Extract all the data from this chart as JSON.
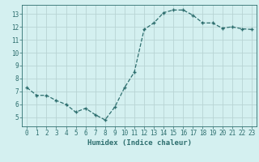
{
  "x": [
    0,
    1,
    2,
    3,
    4,
    5,
    6,
    7,
    8,
    9,
    10,
    11,
    12,
    13,
    14,
    15,
    16,
    17,
    18,
    19,
    20,
    21,
    22,
    23
  ],
  "y": [
    7.3,
    6.7,
    6.7,
    6.3,
    6.0,
    5.4,
    5.7,
    5.2,
    4.8,
    5.8,
    7.3,
    8.5,
    11.8,
    12.3,
    13.1,
    13.3,
    13.3,
    12.9,
    12.3,
    12.3,
    11.9,
    12.0,
    11.85,
    11.8
  ],
  "line_color": "#2d6e6e",
  "marker": "+",
  "marker_size": 3.5,
  "marker_linewidth": 1.0,
  "line_width": 0.9,
  "bg_color": "#d4f0f0",
  "grid_color": "#b8d4d4",
  "xlabel": "Humidex (Indice chaleur)",
  "xlabel_color": "#2d6e6e",
  "tick_color": "#2d6e6e",
  "ylim": [
    4.3,
    13.7
  ],
  "xlim": [
    -0.5,
    23.5
  ],
  "yticks": [
    5,
    6,
    7,
    8,
    9,
    10,
    11,
    12,
    13
  ],
  "xticks": [
    0,
    1,
    2,
    3,
    4,
    5,
    6,
    7,
    8,
    9,
    10,
    11,
    12,
    13,
    14,
    15,
    16,
    17,
    18,
    19,
    20,
    21,
    22,
    23
  ],
  "tick_fontsize": 5.5,
  "xlabel_fontsize": 6.5
}
